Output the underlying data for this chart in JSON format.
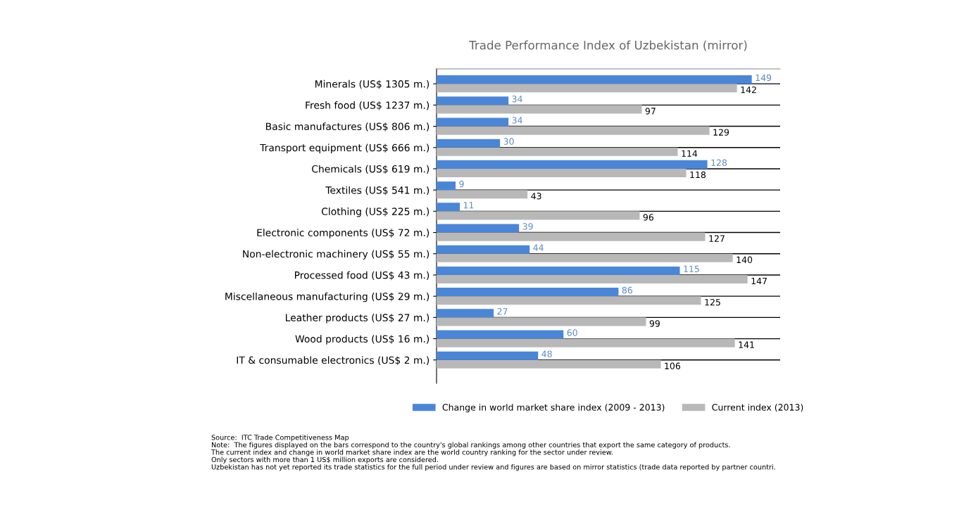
{
  "chart_data": {
    "type": "bar",
    "orientation": "horizontal",
    "title": "Trade Performance Index of Uzbekistan (mirror)",
    "categories": [
      "Minerals (US$ 1305 m.)",
      "Fresh food (US$ 1237 m.)",
      "Basic manufactures (US$ 806 m.)",
      "Transport equipment (US$ 666 m.)",
      "Chemicals (US$ 619 m.)",
      "Textiles (US$ 541 m.)",
      "Clothing (US$ 225 m.)",
      "Electronic components (US$ 72 m.)",
      "Non-electronic machinery (US$ 55 m.)",
      "Processed food (US$ 43 m.)",
      "Miscellaneous manufacturing (US$ 29 m.)",
      "Leather products (US$ 27 m.)",
      "Wood products (US$ 16 m.)",
      "IT & consumable electronics (US$ 2 m.)"
    ],
    "series": [
      {
        "name": "Change in world market share index (2009 - 2013)",
        "color": "#4a86d8",
        "values": [
          149,
          34,
          34,
          30,
          128,
          9,
          11,
          39,
          44,
          115,
          86,
          27,
          60,
          48
        ]
      },
      {
        "name": "Current index (2013)",
        "color": "#b8b8b8",
        "values": [
          142,
          97,
          129,
          114,
          118,
          43,
          96,
          127,
          140,
          147,
          125,
          99,
          141,
          106
        ]
      }
    ],
    "data_labels": true,
    "tick_labels": "y",
    "grid": "y",
    "legend": "bottom",
    "annotations": [
      "Source:  ITC Trade Competitiveness Map",
      "Note:  The figures displayed on the bars correspond to the country's global rankings among other countries that export the same category of products.",
      "The current index and change in world market share index are the world country ranking for the sector under review.",
      "Only sectors with more than 1 US$ million exports are considered.",
      "Uzbekistan has not yet reported its trade statistics for the full period under review and figures are based on mirror statistics (trade data reported by partner countri."
    ]
  }
}
